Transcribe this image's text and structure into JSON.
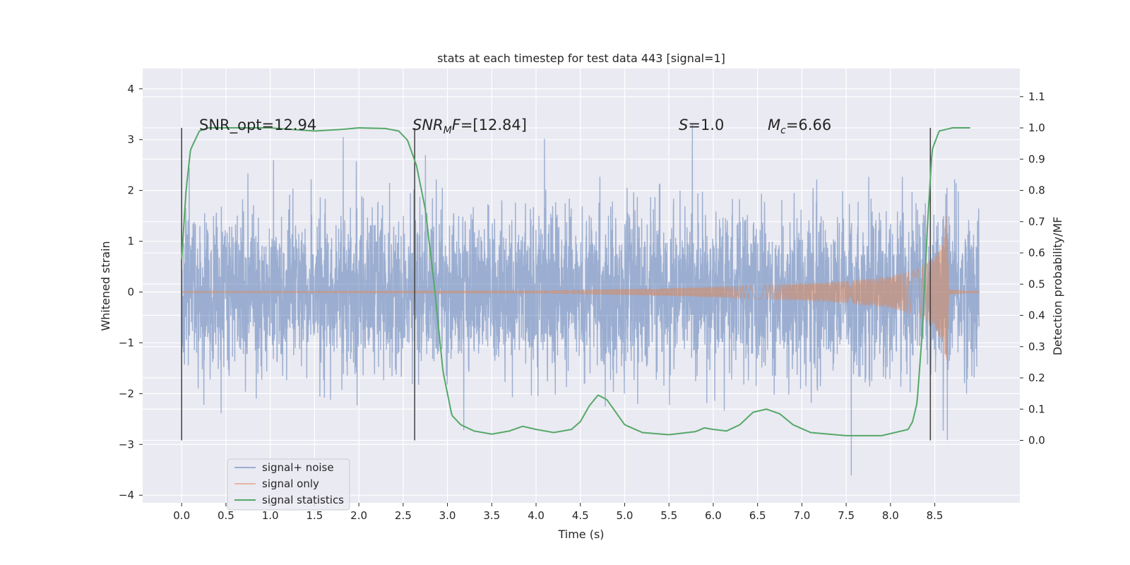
{
  "chart_data": {
    "type": "line",
    "title": "stats at each timestep for test data 443 [signal=1]",
    "xlabel": "Time (s)",
    "ylabel": "Whitened strain",
    "ylabel_right": "Detection probability/MF",
    "xlim": [
      -0.44,
      9.46
    ],
    "ylim": [
      -4.15,
      4.4
    ],
    "ylim_right": [
      -0.2,
      1.19
    ],
    "x_ticks": [
      0.0,
      0.5,
      1.0,
      1.5,
      2.0,
      2.5,
      3.0,
      3.5,
      4.0,
      4.5,
      5.0,
      5.5,
      6.0,
      6.5,
      7.0,
      7.5,
      8.0,
      8.5
    ],
    "x_tick_labels": [
      "0.0",
      "0.5",
      "1.0",
      "1.5",
      "2.0",
      "2.5",
      "3.0",
      "3.5",
      "4.0",
      "4.5",
      "5.0",
      "5.5",
      "6.0",
      "6.5",
      "7.0",
      "7.5",
      "8.0",
      "8.5"
    ],
    "y_ticks": [
      -4,
      -3,
      -2,
      -1,
      0,
      1,
      2,
      3,
      4
    ],
    "y_tick_labels": [
      "−4",
      "−3",
      "−2",
      "−1",
      "0",
      "1",
      "2",
      "3",
      "4"
    ],
    "y_right_ticks": [
      0.0,
      0.1,
      0.2,
      0.3,
      0.4,
      0.5,
      0.6,
      0.7,
      0.8,
      0.9,
      1.0,
      1.1
    ],
    "y_right_tick_labels": [
      "0.0",
      "0.1",
      "0.2",
      "0.3",
      "0.4",
      "0.5",
      "0.6",
      "0.7",
      "0.8",
      "0.9",
      "1.0",
      "1.1"
    ],
    "annotations": {
      "snr_opt": {
        "prefix": "SNR_opt=",
        "value": "12.94"
      },
      "snr_mf": {
        "symbol": "SNR",
        "subscript": "M",
        "suffix": "F",
        "value": "=[12.84]"
      },
      "s": {
        "symbol": "S",
        "value": "=1.0"
      },
      "mc": {
        "symbol": "M",
        "subscript": "c",
        "value": "=6.66"
      }
    },
    "vertical_markers_x": [
      0.0,
      2.63,
      8.45
    ],
    "series": [
      {
        "name": "signal+ noise",
        "color": "#4c72b0",
        "opacity": 0.5,
        "x_range": [
          0.0,
          9.0
        ],
        "note": "Gaussian-like whitened noise with injected signal, roughly within ±3.5"
      },
      {
        "name": "signal only",
        "color": "#dd8452",
        "opacity": 0.5,
        "x_range": [
          0.0,
          9.0
        ],
        "chirp_envelope": [
          [
            0.0,
            0.01
          ],
          [
            4.0,
            0.03
          ],
          [
            5.0,
            0.06
          ],
          [
            6.0,
            0.1
          ],
          [
            7.0,
            0.17
          ],
          [
            7.5,
            0.22
          ],
          [
            8.0,
            0.32
          ],
          [
            8.3,
            0.45
          ],
          [
            8.5,
            0.7
          ],
          [
            8.6,
            1.1
          ],
          [
            8.64,
            1.6
          ],
          [
            8.66,
            0.05
          ],
          [
            9.0,
            0.02
          ]
        ]
      },
      {
        "name": "signal statistics",
        "color": "#55a868",
        "axis": "right",
        "points": [
          [
            0.0,
            0.58
          ],
          [
            0.05,
            0.8
          ],
          [
            0.1,
            0.93
          ],
          [
            0.2,
            0.99
          ],
          [
            0.3,
            1.0
          ],
          [
            0.5,
            1.0
          ],
          [
            1.0,
            1.0
          ],
          [
            1.5,
            0.99
          ],
          [
            1.8,
            0.995
          ],
          [
            2.0,
            1.0
          ],
          [
            2.3,
            0.998
          ],
          [
            2.45,
            0.99
          ],
          [
            2.55,
            0.96
          ],
          [
            2.65,
            0.88
          ],
          [
            2.75,
            0.74
          ],
          [
            2.85,
            0.5
          ],
          [
            2.95,
            0.22
          ],
          [
            3.05,
            0.08
          ],
          [
            3.15,
            0.05
          ],
          [
            3.3,
            0.03
          ],
          [
            3.5,
            0.02
          ],
          [
            3.7,
            0.03
          ],
          [
            3.85,
            0.045
          ],
          [
            4.0,
            0.035
          ],
          [
            4.2,
            0.025
          ],
          [
            4.4,
            0.035
          ],
          [
            4.5,
            0.06
          ],
          [
            4.6,
            0.11
          ],
          [
            4.7,
            0.145
          ],
          [
            4.8,
            0.13
          ],
          [
            4.9,
            0.09
          ],
          [
            5.0,
            0.05
          ],
          [
            5.2,
            0.025
          ],
          [
            5.5,
            0.018
          ],
          [
            5.8,
            0.028
          ],
          [
            5.9,
            0.04
          ],
          [
            6.0,
            0.035
          ],
          [
            6.15,
            0.03
          ],
          [
            6.3,
            0.05
          ],
          [
            6.45,
            0.09
          ],
          [
            6.6,
            0.1
          ],
          [
            6.75,
            0.085
          ],
          [
            6.9,
            0.05
          ],
          [
            7.1,
            0.025
          ],
          [
            7.5,
            0.015
          ],
          [
            7.9,
            0.015
          ],
          [
            8.05,
            0.025
          ],
          [
            8.2,
            0.035
          ],
          [
            8.25,
            0.06
          ],
          [
            8.3,
            0.12
          ],
          [
            8.36,
            0.35
          ],
          [
            8.42,
            0.7
          ],
          [
            8.47,
            0.93
          ],
          [
            8.55,
            0.99
          ],
          [
            8.7,
            1.0
          ],
          [
            8.9,
            1.0
          ]
        ]
      }
    ],
    "legend": {
      "placement": "lower-left",
      "items": [
        {
          "label": "signal+ noise",
          "color": "#4c72b0",
          "opacity": 0.5
        },
        {
          "label": "signal only",
          "color": "#dd8452",
          "opacity": 0.5
        },
        {
          "label": "signal statistics",
          "color": "#55a868",
          "opacity": 1
        }
      ]
    },
    "grid": true
  }
}
